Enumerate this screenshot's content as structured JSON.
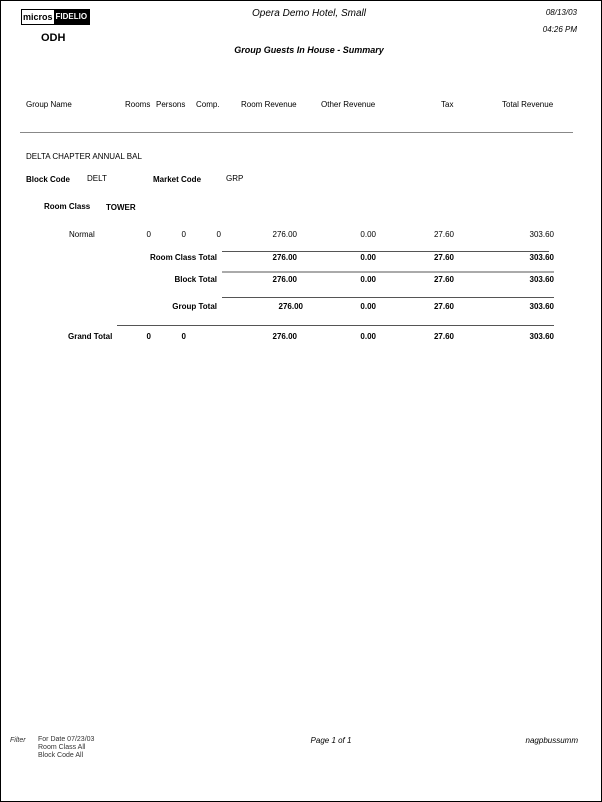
{
  "header": {
    "logo": {
      "part1": "micros",
      "part2": "FIDELIO"
    },
    "property_code": "ODH",
    "hotel_name": "Opera Demo Hotel, Small",
    "date": "08/13/03",
    "time": "04:26 PM",
    "report_title": "Group Guests In House - Summary"
  },
  "columns": [
    "Group Name",
    "Rooms",
    "Persons",
    "Comp.",
    "Room Revenue",
    "Other Revenue",
    "Tax",
    "Total Revenue"
  ],
  "group": {
    "name": "DELTA CHAPTER ANNUAL BAL",
    "block_code_label": "Block Code",
    "block_code": "DELT",
    "market_code_label": "Market Code",
    "market_code": "GRP",
    "room_class_label": "Room Class",
    "room_class": "TOWER",
    "detail": {
      "label": "Normal",
      "rooms": "0",
      "persons": "0",
      "comp": "0",
      "room_revenue": "276.00",
      "other_revenue": "0.00",
      "tax": "27.60",
      "total_revenue": "303.60"
    },
    "room_class_total": {
      "label": "Room Class Total",
      "room_revenue": "276.00",
      "other_revenue": "0.00",
      "tax": "27.60",
      "total_revenue": "303.60"
    },
    "block_total": {
      "label": "Block Total",
      "room_revenue": "276.00",
      "other_revenue": "0.00",
      "tax": "27.60",
      "total_revenue": "303.60"
    },
    "group_total": {
      "label": "Group Total",
      "room_revenue": "276.00",
      "other_revenue": "0.00",
      "tax": "27.60",
      "total_revenue": "303.60"
    }
  },
  "grand_total": {
    "label": "Grand Total",
    "rooms": "0",
    "persons": "0",
    "room_revenue": "276.00",
    "other_revenue": "0.00",
    "tax": "27.60",
    "total_revenue": "303.60"
  },
  "footer": {
    "filter_label": "Filter",
    "filters": [
      "For Date  07/23/03",
      "Room Class  All",
      "Block Code  All"
    ],
    "page": "Page 1 of 1",
    "report_name": "nagpbussumm"
  }
}
